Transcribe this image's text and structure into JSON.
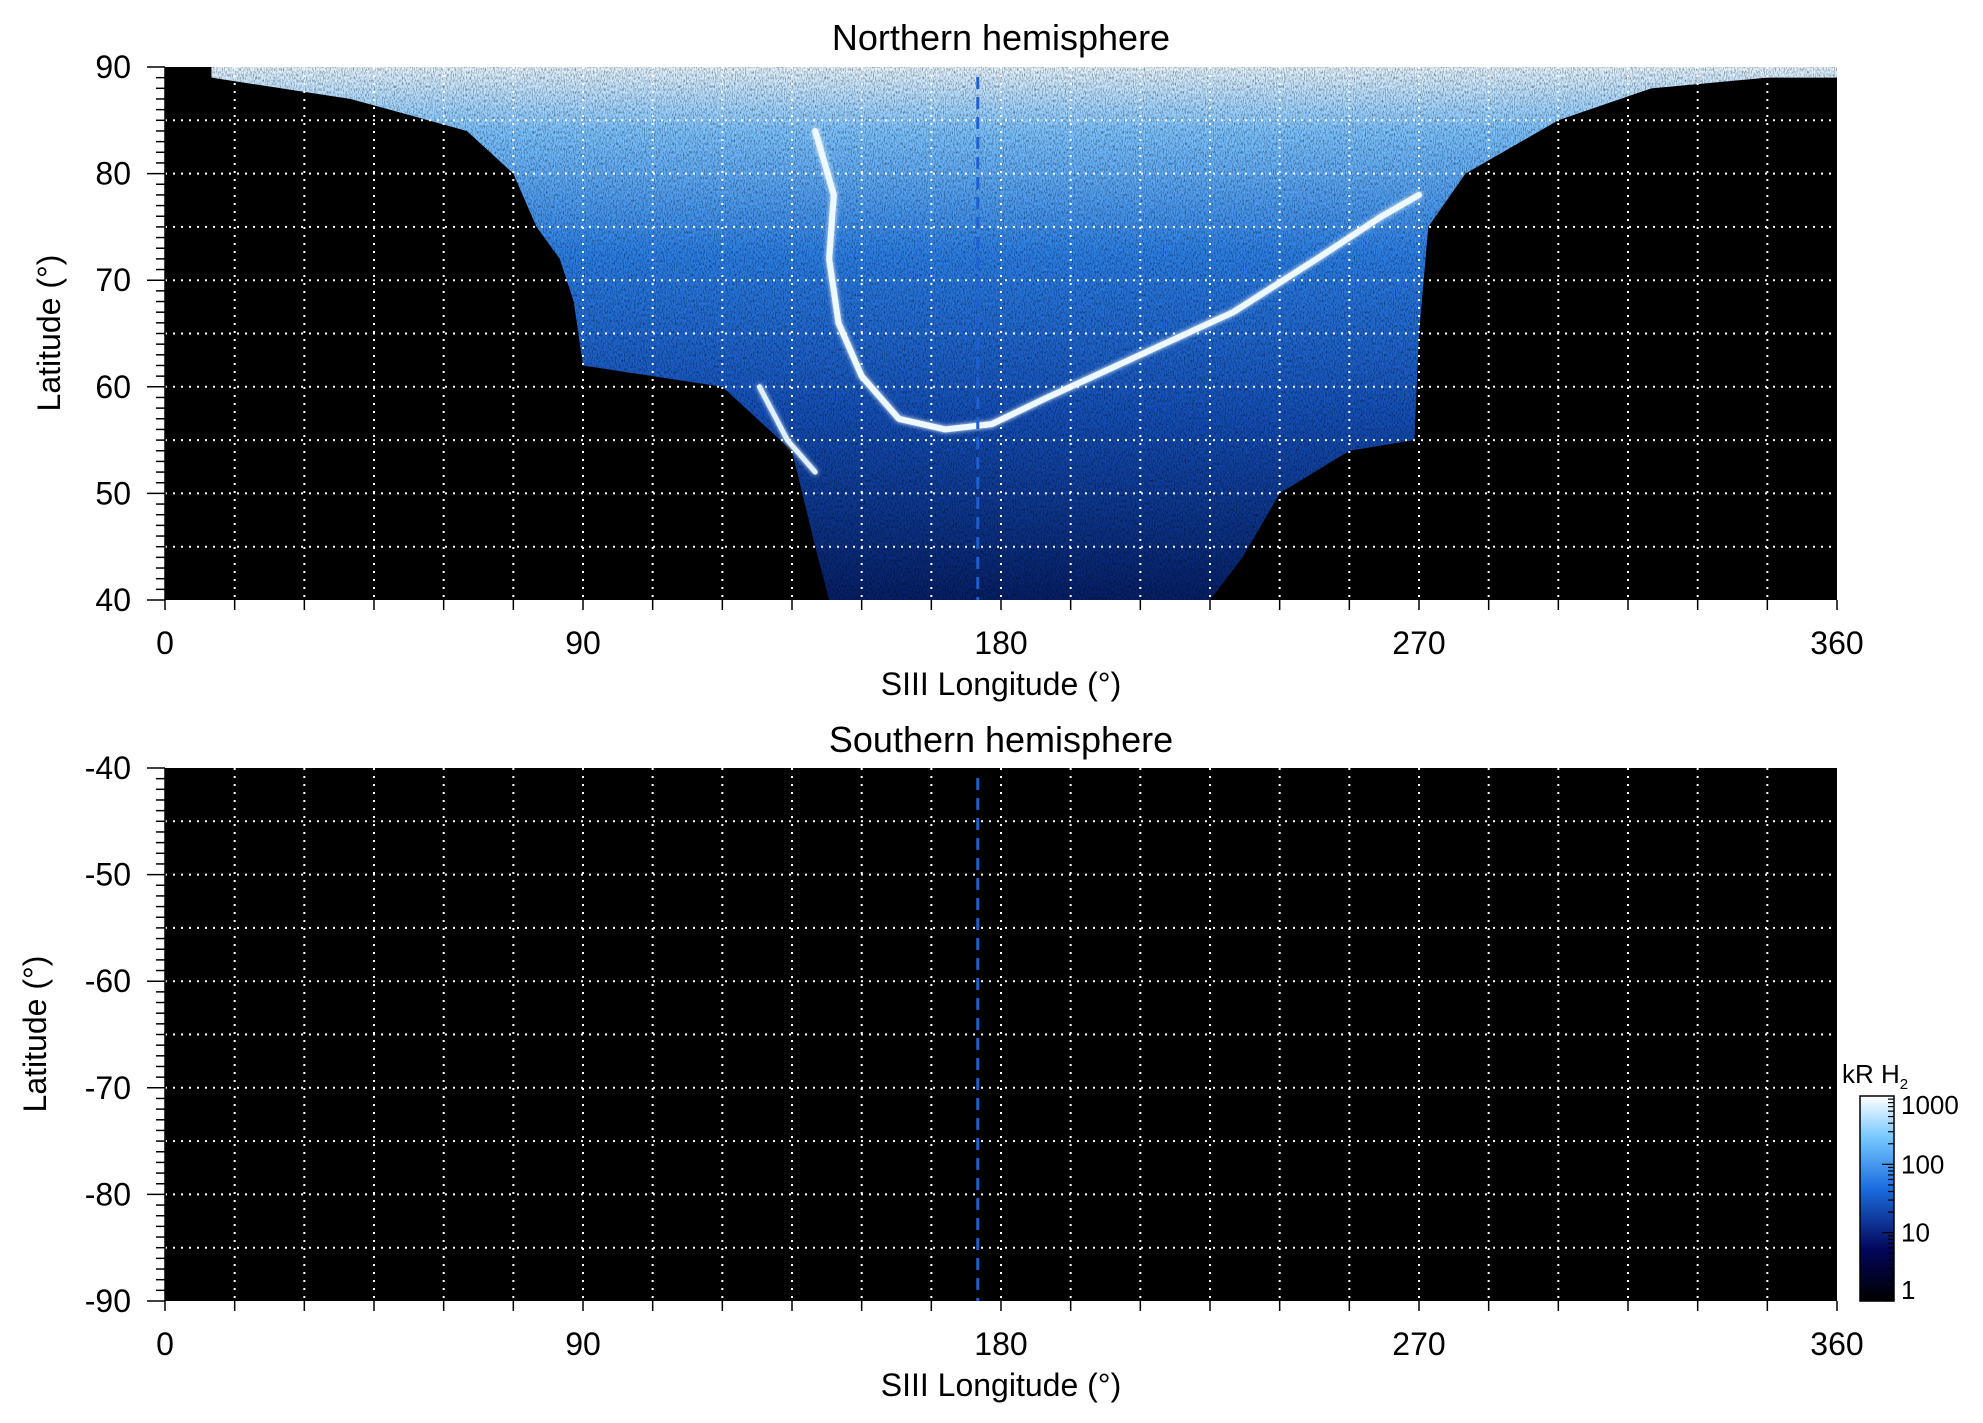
{
  "chart_data": [
    {
      "type": "heatmap",
      "title": "Northern hemisphere",
      "xlabel": "SIII Longitude (°)",
      "ylabel": "Latitude (°)",
      "xlim": [
        0,
        360
      ],
      "ylim": [
        40,
        90
      ],
      "x_ticks": [
        "0",
        "90",
        "180",
        "270",
        "360"
      ],
      "y_ticks": [
        "40",
        "50",
        "60",
        "70",
        "80",
        "90"
      ],
      "grid": "dotted white, every 15° longitude and 5° latitude",
      "reference_line": {
        "x": 175,
        "style": "dashed blue"
      },
      "auroral_coverage": {
        "longitude_range": [
          10,
          360
        ],
        "upper_boundary_lat": 90,
        "lower_boundary": [
          [
            10,
            89
          ],
          [
            40,
            87
          ],
          [
            65,
            84
          ],
          [
            75,
            80
          ],
          [
            80,
            75
          ],
          [
            85,
            72
          ],
          [
            88,
            68
          ],
          [
            90,
            62
          ],
          [
            120,
            60
          ],
          [
            135,
            54
          ],
          [
            140,
            45
          ],
          [
            143,
            40
          ],
          [
            195,
            40
          ],
          [
            225,
            40
          ],
          [
            232,
            44
          ],
          [
            240,
            50
          ],
          [
            255,
            54
          ],
          [
            269,
            55
          ],
          [
            270,
            65
          ],
          [
            272,
            75
          ],
          [
            280,
            80
          ],
          [
            300,
            85
          ],
          [
            320,
            88
          ],
          [
            345,
            89
          ],
          [
            360,
            89
          ]
        ]
      },
      "main_oval": [
        [
          140,
          84
        ],
        [
          144,
          78
        ],
        [
          143,
          72
        ],
        [
          145,
          66
        ],
        [
          150,
          61
        ],
        [
          158,
          57
        ],
        [
          168,
          56
        ],
        [
          178,
          56.5
        ],
        [
          190,
          59
        ],
        [
          210,
          63
        ],
        [
          230,
          67
        ],
        [
          248,
          72
        ],
        [
          262,
          76
        ],
        [
          270,
          78
        ]
      ],
      "secondary_arc": [
        [
          128,
          60
        ],
        [
          134,
          55
        ],
        [
          140,
          52
        ]
      ]
    },
    {
      "type": "heatmap",
      "title": "Southern hemisphere",
      "xlabel": "SIII Longitude (°)",
      "ylabel": "Latitude (°)",
      "xlim": [
        0,
        360
      ],
      "ylim": [
        -90,
        -40
      ],
      "x_ticks": [
        "0",
        "90",
        "180",
        "270",
        "360"
      ],
      "y_ticks": [
        "-40",
        "-50",
        "-60",
        "-70",
        "-80",
        "-90"
      ],
      "grid": "dotted white, every 15° longitude and 5° latitude",
      "reference_line": {
        "x": 175,
        "style": "dashed blue"
      },
      "auroral_coverage": null
    }
  ],
  "colorbar": {
    "label": "kR H",
    "label_subscript": "2",
    "scale": "log",
    "range": [
      1,
      1000
    ],
    "ticks": [
      "1000",
      "100",
      "10",
      "1"
    ],
    "colors": [
      "#000000",
      "#03065a",
      "#1c6ddf",
      "#78c8ff",
      "#ffffff"
    ]
  }
}
